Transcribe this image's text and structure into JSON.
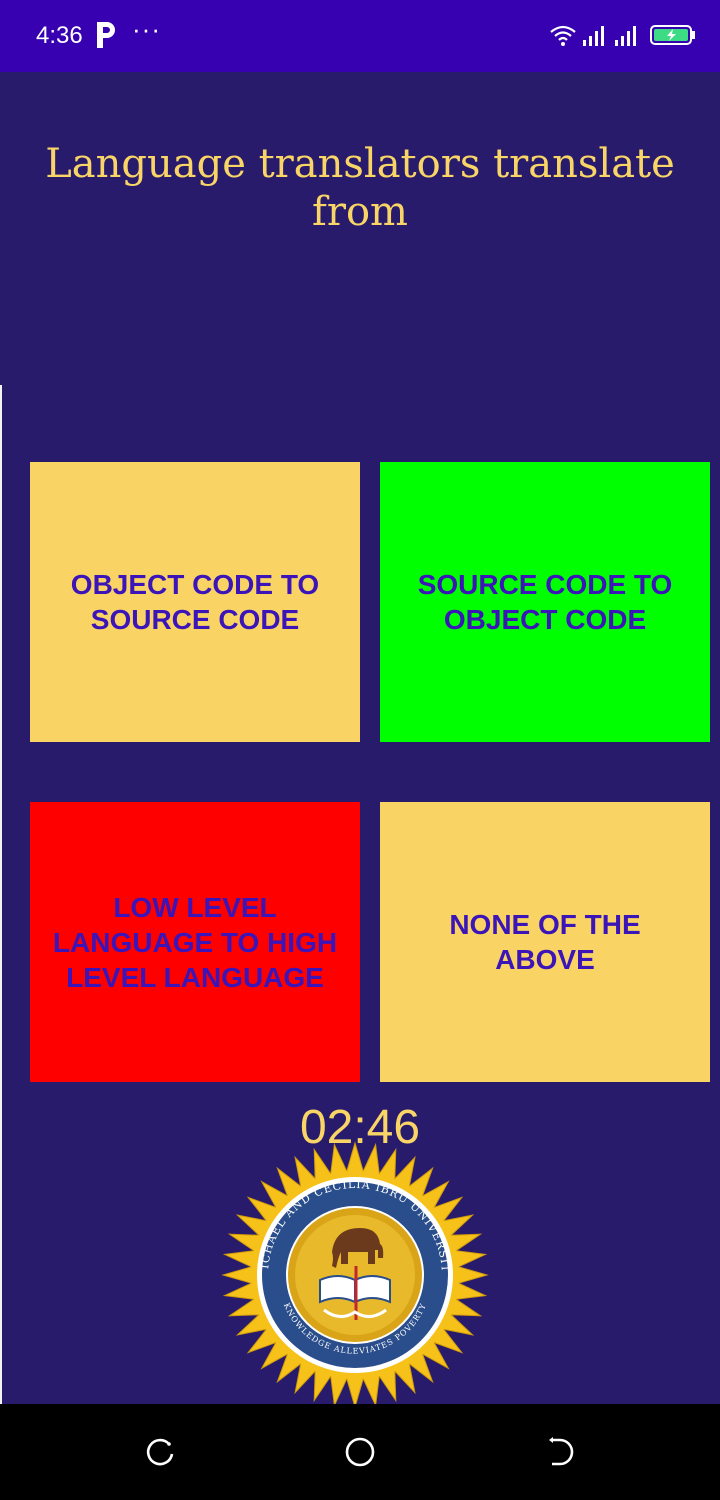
{
  "status_bar": {
    "time": "4:36",
    "notification_icons": [
      "p-app-icon",
      "more-dots-icon"
    ],
    "system_icons": [
      "wifi-icon",
      "signal-icon",
      "signal-icon",
      "battery-charging-icon"
    ],
    "background": "#3700b0"
  },
  "quiz": {
    "question": "Language translators translate from",
    "options": [
      {
        "label": "OBJECT CODE TO SOURCE CODE",
        "color": "#f9d465",
        "state": "default"
      },
      {
        "label": "SOURCE CODE TO OBJECT CODE",
        "color": "#00ff00",
        "state": "correct"
      },
      {
        "label": "LOW LEVEL LANGUAGE TO HIGH LEVEL LANGUAGE",
        "color": "#ff0000",
        "state": "wrong"
      },
      {
        "label": "NONE OF THE ABOVE",
        "color": "#f9d465",
        "state": "default"
      }
    ],
    "timer": "02:46"
  },
  "logo": {
    "name": "university-seal",
    "ring_text": "MICHAEL AND CECILIA IBRU UNIVERSITY",
    "motto": "KNOWLEDGE ALLEVIATES POVERTY"
  },
  "colors": {
    "background": "#291b6b",
    "accent_text": "#f8d566",
    "option_text": "#3b15b8"
  },
  "nav_bar": {
    "buttons": [
      "recent-apps-icon",
      "home-icon",
      "back-icon"
    ]
  }
}
